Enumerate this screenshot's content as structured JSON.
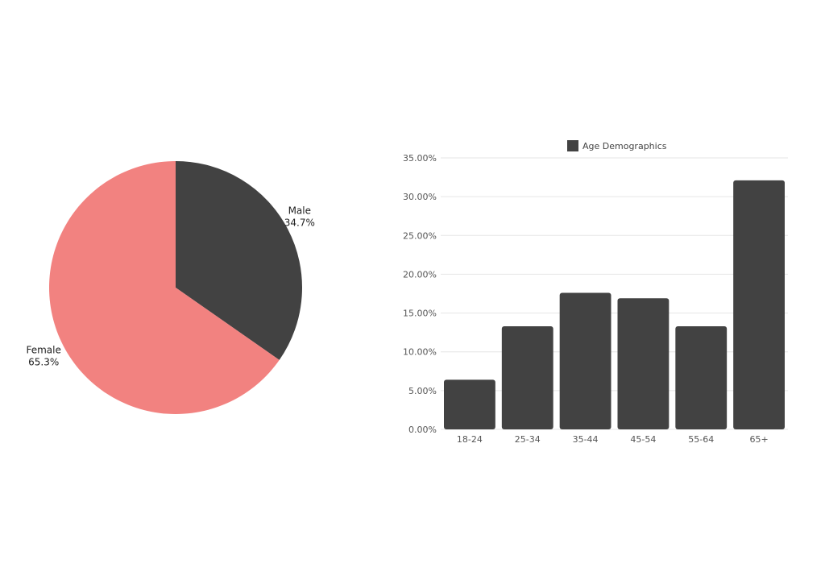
{
  "colors": {
    "dark": "#424242",
    "female": "#f28280",
    "grid": "#e6e6e6",
    "background": "#ffffff"
  },
  "chart_data": [
    {
      "type": "pie",
      "slices": [
        {
          "name": "Male",
          "value": 34.7,
          "label": "34.7%",
          "color": "#424242"
        },
        {
          "name": "Female",
          "value": 65.3,
          "label": "65.3%",
          "color": "#f28280"
        }
      ]
    },
    {
      "type": "bar",
      "categories": [
        "18-24",
        "25-34",
        "35-44",
        "45-54",
        "55-64",
        "65+"
      ],
      "series": [
        {
          "name": "Age Demographics",
          "color": "#424242",
          "values": [
            6.4,
            13.3,
            17.6,
            16.9,
            13.3,
            32.1
          ]
        }
      ],
      "ylim": [
        0,
        35
      ],
      "yticks": [
        0,
        5,
        10,
        15,
        20,
        25,
        30,
        35
      ],
      "ytick_labels": [
        "0.00%",
        "5.00%",
        "10.00%",
        "15.00%",
        "20.00%",
        "25.00%",
        "30.00%",
        "35.00%"
      ],
      "grid": true,
      "legend": "top-center"
    }
  ]
}
